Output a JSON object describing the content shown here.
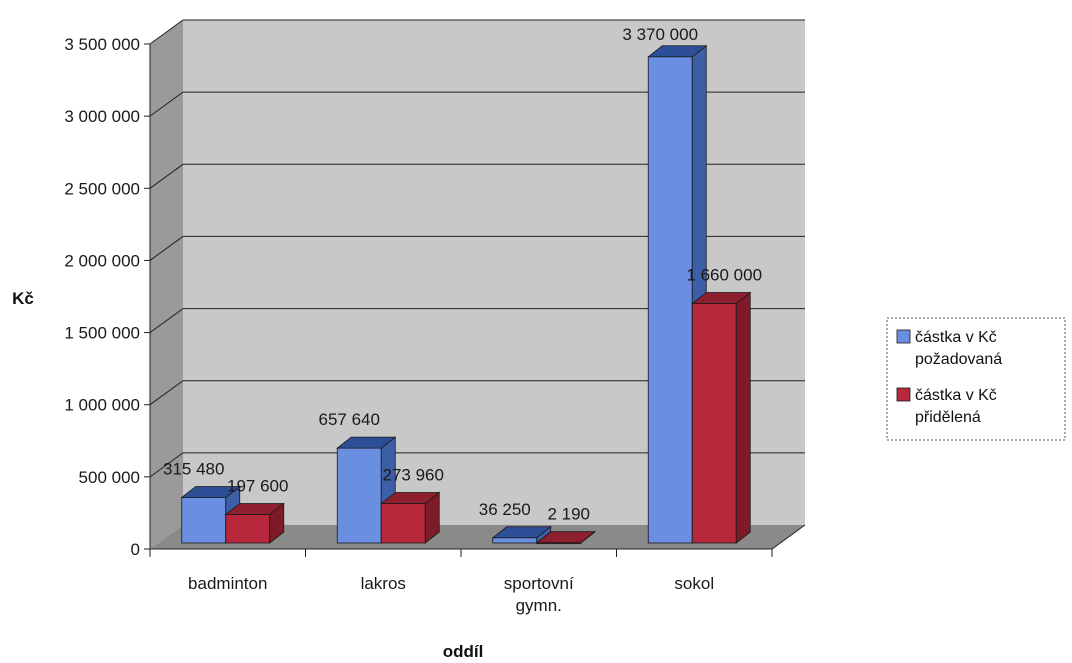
{
  "chart_data": {
    "type": "bar",
    "categories": [
      "badminton",
      "lakros",
      "sportovní gymn.",
      "sokol"
    ],
    "series": [
      {
        "name": "částka v Kč požadovaná",
        "values": [
          315480,
          657640,
          36250,
          3370000
        ],
        "color": "#6b8fe0",
        "side_color": "#3d5fa8",
        "top_color": "#2d4f98"
      },
      {
        "name": "částka v Kč přidělená",
        "values": [
          197600,
          273960,
          2190,
          1660000
        ],
        "color": "#b8283c",
        "side_color": "#7f1a28",
        "top_color": "#8e1f2f"
      }
    ],
    "data_labels": [
      [
        "315 480",
        "657 640",
        "36 250",
        "3 370 000"
      ],
      [
        "197 600",
        "273 960",
        "2 190",
        "1 660 000"
      ]
    ],
    "yticks": [
      {
        "value": 0,
        "label": "0"
      },
      {
        "value": 500000,
        "label": "500 000"
      },
      {
        "value": 1000000,
        "label": "1 000 000"
      },
      {
        "value": 1500000,
        "label": "1 500 000"
      },
      {
        "value": 2000000,
        "label": "2 000 000"
      },
      {
        "value": 2500000,
        "label": "2 500 000"
      },
      {
        "value": 3000000,
        "label": "3 000 000"
      },
      {
        "value": 3500000,
        "label": "3 500 000"
      }
    ],
    "category_labels": [
      [
        "badminton"
      ],
      [
        "lakros"
      ],
      [
        "sportovní",
        "gymn."
      ],
      [
        "sokol"
      ]
    ],
    "ylim": [
      0,
      3500000
    ],
    "ylabel": "Kč",
    "xlabel": "oddíl",
    "grid": true,
    "legend_position": "right",
    "walls": {
      "back": "#c8c8c8",
      "side": "#9a9a9a",
      "floor": "#8a8a8a"
    }
  }
}
